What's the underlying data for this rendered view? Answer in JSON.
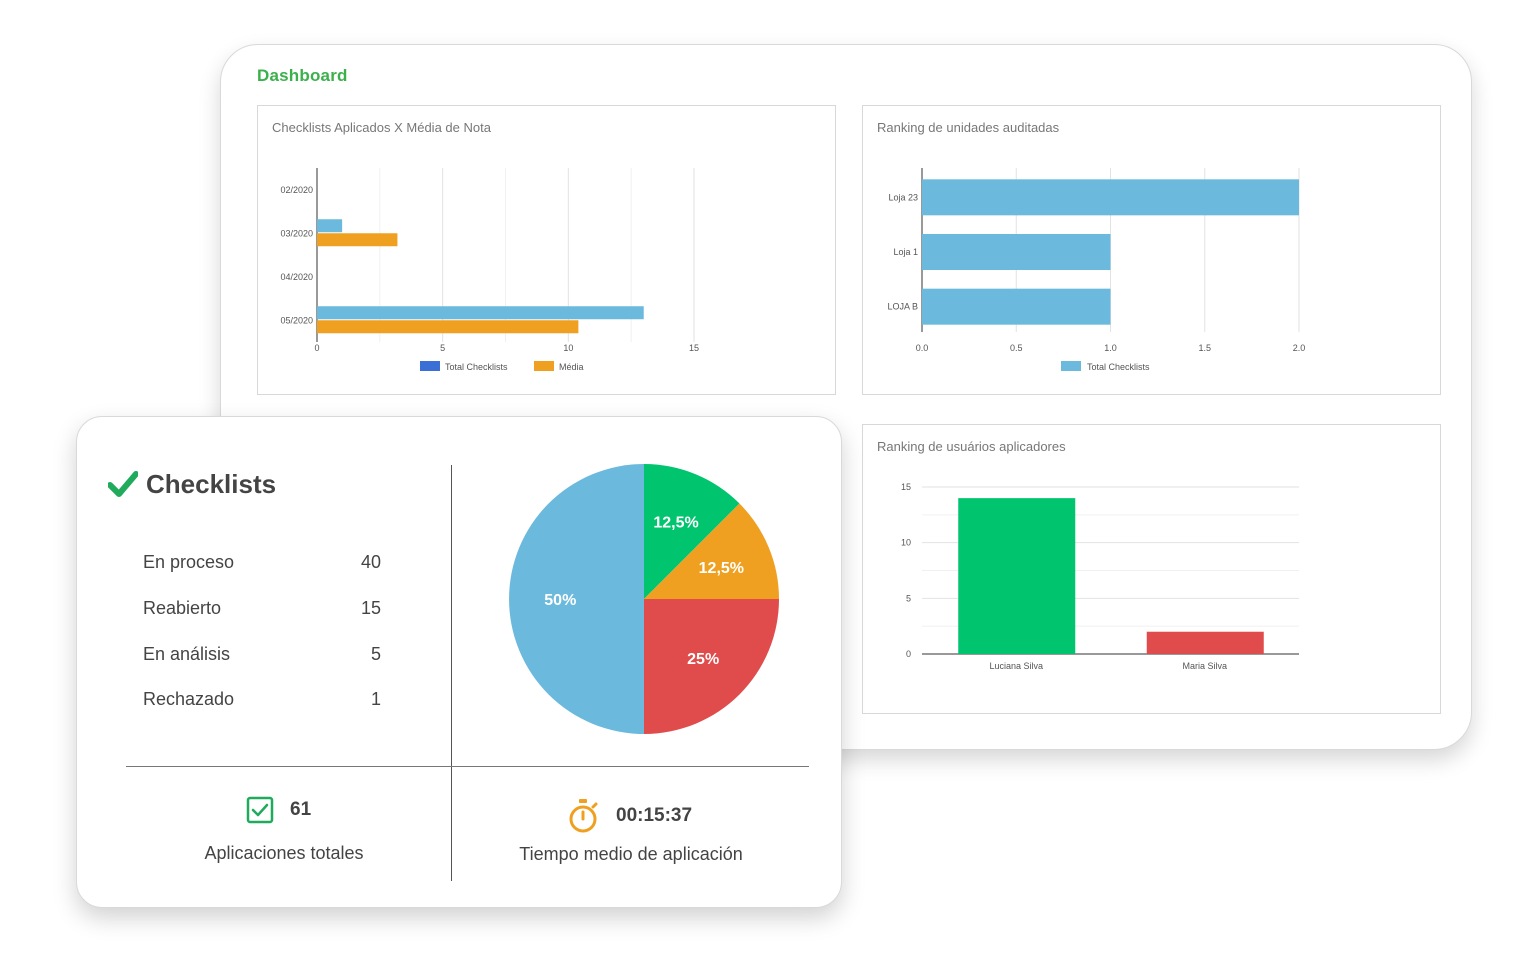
{
  "dashboard": {
    "title": "Dashboard",
    "panels": {
      "checklists_vs_media": {
        "title": "Checklists Aplicados X Média de Nota",
        "chart_data": {
          "type": "bar",
          "orientation": "horizontal",
          "categories": [
            "02/2020",
            "03/2020",
            "04/2020",
            "05/2020"
          ],
          "series": [
            {
              "name": "Total Checklists",
              "values": [
                0,
                1,
                0,
                13
              ]
            },
            {
              "name": "Média",
              "values": [
                0,
                3.2,
                0,
                10.4
              ]
            }
          ],
          "xticks": [
            "0",
            "5",
            "10",
            "15"
          ],
          "xlim": [
            0,
            15
          ],
          "legend_placement": "bottom"
        }
      },
      "ranking_unidades": {
        "title": "Ranking de unidades auditadas",
        "chart_data": {
          "type": "bar",
          "orientation": "horizontal",
          "categories": [
            "Loja 23",
            "Loja 1",
            "LOJA B"
          ],
          "series": [
            {
              "name": "Total Checklists",
              "values": [
                2,
                1,
                1
              ]
            }
          ],
          "xticks": [
            "0.0",
            "0.5",
            "1.0",
            "1.5",
            "2.0"
          ],
          "xlim": [
            0,
            2
          ],
          "legend_placement": "bottom"
        }
      },
      "ranking_usuarios": {
        "title": "Ranking de usuários aplicadores",
        "chart_data": {
          "type": "bar",
          "categories": [
            "Luciana Silva",
            "Maria Silva"
          ],
          "values": [
            14,
            2
          ],
          "colors": [
            "#00c46e",
            "#e04b4b"
          ],
          "yticks": [
            "0",
            "5",
            "10",
            "15"
          ],
          "ylim": [
            0,
            15
          ]
        }
      }
    }
  },
  "checklists_card": {
    "title": "Checklists",
    "stats": [
      {
        "label": "En proceso",
        "value": "40"
      },
      {
        "label": "Reabierto",
        "value": "15"
      },
      {
        "label": "En análisis",
        "value": "5"
      },
      {
        "label": "Rechazado",
        "value": "1"
      }
    ],
    "pie": {
      "chart_data": {
        "type": "pie",
        "slices": [
          {
            "label": "12,5%",
            "value": 12.5,
            "color": "#00c46e"
          },
          {
            "label": "12,5%",
            "value": 12.5,
            "color": "#f0a020"
          },
          {
            "label": "25%",
            "value": 25,
            "color": "#e04b4b"
          },
          {
            "label": "50%",
            "value": 50,
            "color": "#6bb9dc"
          }
        ]
      }
    },
    "total": {
      "value": "61",
      "label": "Aplicaciones totales",
      "icon": "checkbox-icon"
    },
    "avg_time": {
      "value": "00:15:37",
      "label": "Tiempo medio de aplicación",
      "icon": "stopwatch-icon"
    }
  },
  "colors": {
    "brand_green": "#3bb04b",
    "series_blue": "#6bb9dc",
    "series_orange": "#f0a020",
    "legend_blue": "#3a6fd6",
    "check_green": "#1faa5c",
    "timer_orange": "#f0a020"
  }
}
